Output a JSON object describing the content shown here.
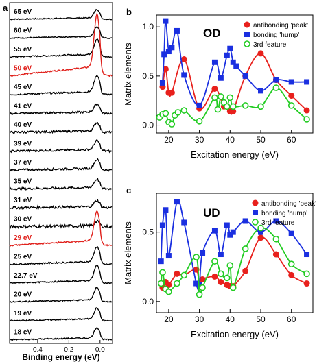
{
  "figure": {
    "panel_a": {
      "letter": "a",
      "xlabel": "Binding energy (eV)",
      "xticks": [
        0.4,
        0.2,
        0.0
      ],
      "xtick_labels": [
        "0.4",
        "0.2",
        "0.0"
      ],
      "xlim": [
        0.58,
        -0.08
      ],
      "highlight_color": "#e0201b",
      "trace_color": "#000000",
      "spectra": [
        {
          "label": "65 eV",
          "amp": 12,
          "noise": 0.8,
          "highlight": false
        },
        {
          "label": "60 eV",
          "amp": 14,
          "noise": 0.8,
          "highlight": false
        },
        {
          "label": "55 eV",
          "amp": 22,
          "noise": 1.0,
          "highlight": false
        },
        {
          "label": "50 eV",
          "amp": 76,
          "noise": 1.0,
          "highlight": true
        },
        {
          "label": "45 eV",
          "amp": 24,
          "noise": 1.2,
          "highlight": false
        },
        {
          "label": "41 eV",
          "amp": 12,
          "noise": 1.4,
          "highlight": false
        },
        {
          "label": "40 eV",
          "amp": 12,
          "noise": 1.6,
          "highlight": false
        },
        {
          "label": "39 eV",
          "amp": 13,
          "noise": 1.6,
          "highlight": false
        },
        {
          "label": "37 eV",
          "amp": 13,
          "noise": 1.6,
          "highlight": false
        },
        {
          "label": "35 eV",
          "amp": 12,
          "noise": 1.6,
          "highlight": false
        },
        {
          "label": "31 eV",
          "amp": 9,
          "noise": 1.8,
          "highlight": false
        },
        {
          "label": "30 eV",
          "amp": 6,
          "noise": 2.2,
          "highlight": false
        },
        {
          "label": "29 eV",
          "amp": 42,
          "noise": 1.0,
          "highlight": true
        },
        {
          "label": "25 eV",
          "amp": 22,
          "noise": 1.0,
          "highlight": false
        },
        {
          "label": "22.7 eV",
          "amp": 22,
          "noise": 0.9,
          "highlight": false
        },
        {
          "label": "20 eV",
          "amp": 18,
          "noise": 0.9,
          "highlight": false
        },
        {
          "label": "19 eV",
          "amp": 16,
          "noise": 0.9,
          "highlight": false
        },
        {
          "label": "18 eV",
          "amp": 15,
          "noise": 0.9,
          "highlight": false
        }
      ]
    },
    "panel_b": {
      "letter": "b",
      "title": "OD",
      "xlabel": "Excitation energy (eV)",
      "ylabel": "Matrix elements",
      "xlim": [
        16,
        67
      ],
      "ylim": [
        -0.08,
        1.12
      ],
      "xticks": [
        20,
        30,
        40,
        50,
        60
      ],
      "yticks": [
        0.0,
        0.5,
        1.0
      ],
      "ytick_labels": [
        "0.0",
        "0.5",
        "1.0"
      ],
      "legend": [
        {
          "label": "antibonding 'peak'",
          "color": "#e8201c",
          "marker": "circle-filled"
        },
        {
          "label": "bonding 'hump'",
          "color": "#1a2fe0",
          "marker": "square-filled"
        },
        {
          "label": "3rd feature",
          "color": "#22cc22",
          "marker": "circle-open"
        }
      ]
    },
    "panel_c": {
      "letter": "c",
      "title": "UD",
      "xlabel": "Excitation energy (eV)",
      "ylabel": "Matrix elements",
      "xlim": [
        16,
        67
      ],
      "ylim": [
        -0.08,
        0.78
      ],
      "xticks": [
        20,
        30,
        40,
        50,
        60
      ],
      "yticks": [
        0.0,
        0.5
      ],
      "ytick_labels": [
        "0.0",
        "0.5"
      ],
      "legend": [
        {
          "label": "antibonding 'peak'",
          "color": "#e8201c",
          "marker": "circle-filled"
        },
        {
          "label": "bonding 'hump'",
          "color": "#1a2fe0",
          "marker": "square-filled"
        },
        {
          "label": "3rd feature",
          "color": "#22cc22",
          "marker": "circle-open"
        }
      ]
    }
  },
  "chart_data": [
    {
      "type": "line",
      "panel": "a",
      "xlabel": "Binding energy (eV)",
      "note": "stacked ARPES energy distribution curves, peak near EF",
      "series_names": [
        "65 eV",
        "60 eV",
        "55 eV",
        "50 eV",
        "45 eV",
        "41 eV",
        "40 eV",
        "39 eV",
        "37 eV",
        "35 eV",
        "31 eV",
        "30 eV",
        "29 eV",
        "25 eV",
        "22.7 eV",
        "20 eV",
        "19 eV",
        "18 eV"
      ]
    },
    {
      "type": "scatter",
      "panel": "b",
      "title": "OD",
      "xlabel": "Excitation energy (eV)",
      "ylabel": "Matrix elements",
      "xlim": [
        16,
        67
      ],
      "ylim": [
        -0.08,
        1.12
      ],
      "series": [
        {
          "name": "antibonding 'peak'",
          "x": [
            18,
            19,
            20,
            21,
            25,
            30,
            35,
            38,
            40,
            41,
            45,
            50,
            55,
            60,
            65
          ],
          "y": [
            0.39,
            0.57,
            0.33,
            0.33,
            0.67,
            0.17,
            0.37,
            0.19,
            0.14,
            0.14,
            0.5,
            0.73,
            0.46,
            0.3,
            0.15
          ]
        },
        {
          "name": "bonding 'hump'",
          "x": [
            18,
            18.5,
            19,
            20,
            21,
            22.7,
            25,
            30,
            35,
            37,
            39,
            40,
            41,
            42,
            45,
            50,
            55,
            60,
            65
          ],
          "y": [
            0.43,
            0.72,
            1.06,
            0.75,
            0.79,
            0.96,
            0.51,
            0.2,
            0.64,
            0.48,
            0.71,
            0.78,
            0.64,
            0.6,
            0.5,
            0.35,
            0.46,
            0.44,
            0.44
          ]
        },
        {
          "name": "3rd feature",
          "x": [
            17,
            18,
            19,
            20,
            21,
            22,
            23,
            25,
            30,
            35,
            36,
            37,
            38,
            39,
            40,
            41,
            45,
            50,
            55,
            60,
            65
          ],
          "y": [
            0.08,
            0.11,
            0.12,
            0.03,
            0.01,
            0.1,
            0.13,
            0.15,
            0.04,
            0.28,
            0.16,
            0.29,
            0.23,
            0.19,
            0.28,
            0.19,
            0.2,
            0.19,
            0.38,
            0.2,
            0.06
          ]
        }
      ]
    },
    {
      "type": "scatter",
      "panel": "c",
      "title": "UD",
      "xlabel": "Excitation energy (eV)",
      "ylabel": "Matrix elements",
      "xlim": [
        16,
        67
      ],
      "ylim": [
        -0.08,
        0.78
      ],
      "series": [
        {
          "name": "antibonding 'peak'",
          "x": [
            18,
            19,
            20,
            22.7,
            25,
            29,
            30,
            31,
            35,
            37,
            39,
            40,
            41,
            45,
            50,
            55,
            60,
            65
          ],
          "y": [
            0.1,
            0.14,
            0.12,
            0.2,
            0.19,
            0.23,
            0.11,
            0.16,
            0.18,
            0.14,
            0.12,
            0.11,
            0.11,
            0.22,
            0.46,
            0.34,
            0.19,
            0.13
          ]
        },
        {
          "name": "bonding 'hump'",
          "x": [
            17.5,
            18,
            19,
            20,
            22.7,
            25,
            29,
            30,
            31,
            35,
            37,
            39,
            40,
            41,
            45,
            50,
            55,
            60,
            65
          ],
          "y": [
            0.29,
            0.55,
            0.66,
            0.33,
            0.72,
            0.57,
            0.13,
            0.12,
            0.35,
            0.51,
            0.34,
            0.55,
            0.48,
            0.5,
            0.58,
            0.5,
            0.58,
            0.49,
            0.34
          ]
        },
        {
          "name": "3rd feature",
          "x": [
            17.5,
            18,
            19,
            20,
            22.7,
            25,
            29,
            30,
            31,
            35,
            37,
            39,
            40,
            41,
            45,
            50,
            55,
            60,
            65
          ],
          "y": [
            0.13,
            0.21,
            0.09,
            0.07,
            0.13,
            0.19,
            0.32,
            0.05,
            0.1,
            0.29,
            0.2,
            0.17,
            0.26,
            0.1,
            0.38,
            0.53,
            0.45,
            0.27,
            0.2
          ]
        }
      ]
    }
  ]
}
